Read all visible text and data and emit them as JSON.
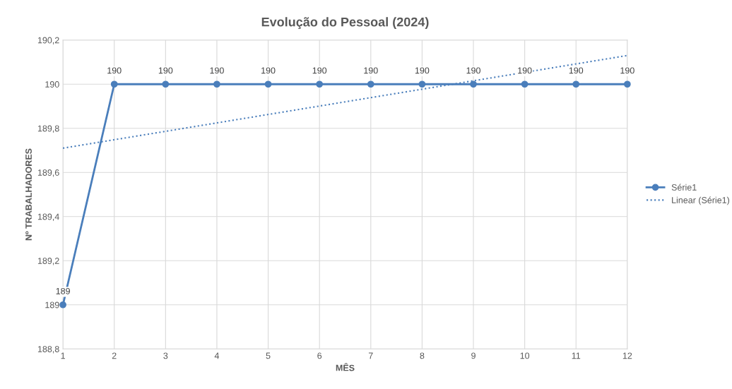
{
  "chart_data": {
    "type": "line",
    "title": "Evolução do Pessoal (2024)",
    "xlabel": "MÊS",
    "ylabel": "Nº TRABALHADORES",
    "x": [
      1,
      2,
      3,
      4,
      5,
      6,
      7,
      8,
      9,
      10,
      11,
      12
    ],
    "series": [
      {
        "name": "Série1",
        "color": "#4a7ebb",
        "marker": "circle",
        "line_style": "solid",
        "data_labels": true,
        "values": [
          189,
          190,
          190,
          190,
          190,
          190,
          190,
          190,
          190,
          190,
          190,
          190
        ]
      },
      {
        "name": "Linear (Série1)",
        "type": "line",
        "color": "#4a7ebb",
        "marker": "none",
        "line_style": "dotted",
        "x": [
          1,
          12
        ],
        "values": [
          189.71,
          190.13
        ]
      }
    ],
    "xlim": [
      1,
      12
    ],
    "xticks": [
      1,
      2,
      3,
      4,
      5,
      6,
      7,
      8,
      9,
      10,
      11,
      12
    ],
    "ylim": [
      188.8,
      190.2
    ],
    "yticks": [
      {
        "value": 188.8,
        "label": "188,8"
      },
      {
        "value": 189,
        "label": "189"
      },
      {
        "value": 189.2,
        "label": "189,2"
      },
      {
        "value": 189.4,
        "label": "189,4"
      },
      {
        "value": 189.6,
        "label": "189,6"
      },
      {
        "value": 189.8,
        "label": "189,8"
      },
      {
        "value": 190,
        "label": "190"
      },
      {
        "value": 190.2,
        "label": "190,2"
      }
    ],
    "grid": true,
    "legend": "right"
  }
}
